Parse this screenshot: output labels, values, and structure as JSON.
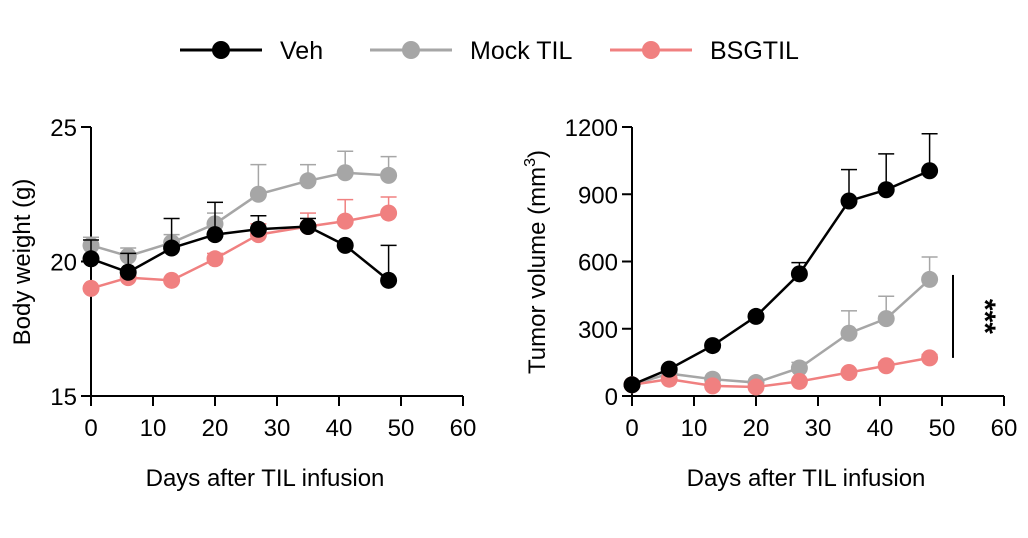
{
  "colors": {
    "veh": "#000000",
    "mock": "#a6a6a6",
    "bsg": "#f08080",
    "axis": "#000000"
  },
  "legend": [
    {
      "key": "veh",
      "label": "Veh"
    },
    {
      "key": "mock",
      "label": "Mock TIL"
    },
    {
      "key": "bsg",
      "label": "BSGTIL"
    }
  ],
  "chart_data": [
    {
      "type": "line",
      "xlabel": "Days after TIL infusion",
      "ylabel": "Body weight (g)",
      "xlim": [
        0,
        60
      ],
      "ylim": [
        15,
        25
      ],
      "xticks": [
        "0",
        "10",
        "20",
        "30",
        "40",
        "50",
        "60"
      ],
      "yticks": [
        "15",
        "20",
        "25"
      ],
      "x": [
        0,
        6,
        13,
        20,
        27,
        35,
        41,
        48
      ],
      "series": [
        {
          "name": "Veh",
          "key": "veh",
          "values": [
            20.1,
            19.6,
            20.5,
            21.0,
            21.2,
            21.3,
            20.6,
            19.3
          ],
          "errors": [
            0.7,
            0.7,
            1.1,
            1.2,
            0.5,
            0.3,
            0.0,
            1.3
          ]
        },
        {
          "name": "Mock TIL",
          "key": "mock",
          "values": [
            20.6,
            20.2,
            20.7,
            21.4,
            22.5,
            23.0,
            23.3,
            23.2
          ],
          "errors": [
            0.3,
            0.3,
            0.3,
            0.4,
            1.1,
            0.6,
            0.8,
            0.7
          ]
        },
        {
          "name": "BSGTIL",
          "key": "bsg",
          "values": [
            19.0,
            19.4,
            19.3,
            20.1,
            21.0,
            21.3,
            21.5,
            21.8
          ],
          "errors": [
            0.0,
            0.0,
            0.0,
            0.2,
            0.4,
            0.5,
            0.8,
            0.6
          ]
        }
      ]
    },
    {
      "type": "line",
      "xlabel": "Days after TIL infusion",
      "ylabel_main": "Tumor volume (mm",
      "ylabel_sup": "3",
      "ylabel_end": ")",
      "xlim": [
        0,
        60
      ],
      "ylim": [
        0,
        1200
      ],
      "xticks": [
        "0",
        "10",
        "20",
        "30",
        "40",
        "50",
        "60"
      ],
      "yticks": [
        "0",
        "300",
        "600",
        "900",
        "1200"
      ],
      "x": [
        0,
        6,
        13,
        20,
        27,
        35,
        41,
        48
      ],
      "series": [
        {
          "name": "Veh",
          "key": "veh",
          "values": [
            50,
            120,
            225,
            355,
            545,
            870,
            920,
            1005
          ],
          "errors": [
            0,
            0,
            0,
            0,
            50,
            140,
            160,
            165
          ]
        },
        {
          "name": "Mock TIL",
          "key": "mock",
          "values": [
            50,
            100,
            75,
            60,
            125,
            280,
            345,
            520
          ],
          "errors": [
            0,
            0,
            0,
            0,
            25,
            100,
            100,
            100
          ]
        },
        {
          "name": "BSGTIL",
          "key": "bsg",
          "values": [
            50,
            75,
            45,
            40,
            65,
            105,
            135,
            170
          ],
          "errors": [
            0,
            0,
            0,
            0,
            0,
            0,
            15,
            15
          ]
        }
      ],
      "significance": {
        "label": "***",
        "from": 170,
        "to": 540
      }
    }
  ]
}
